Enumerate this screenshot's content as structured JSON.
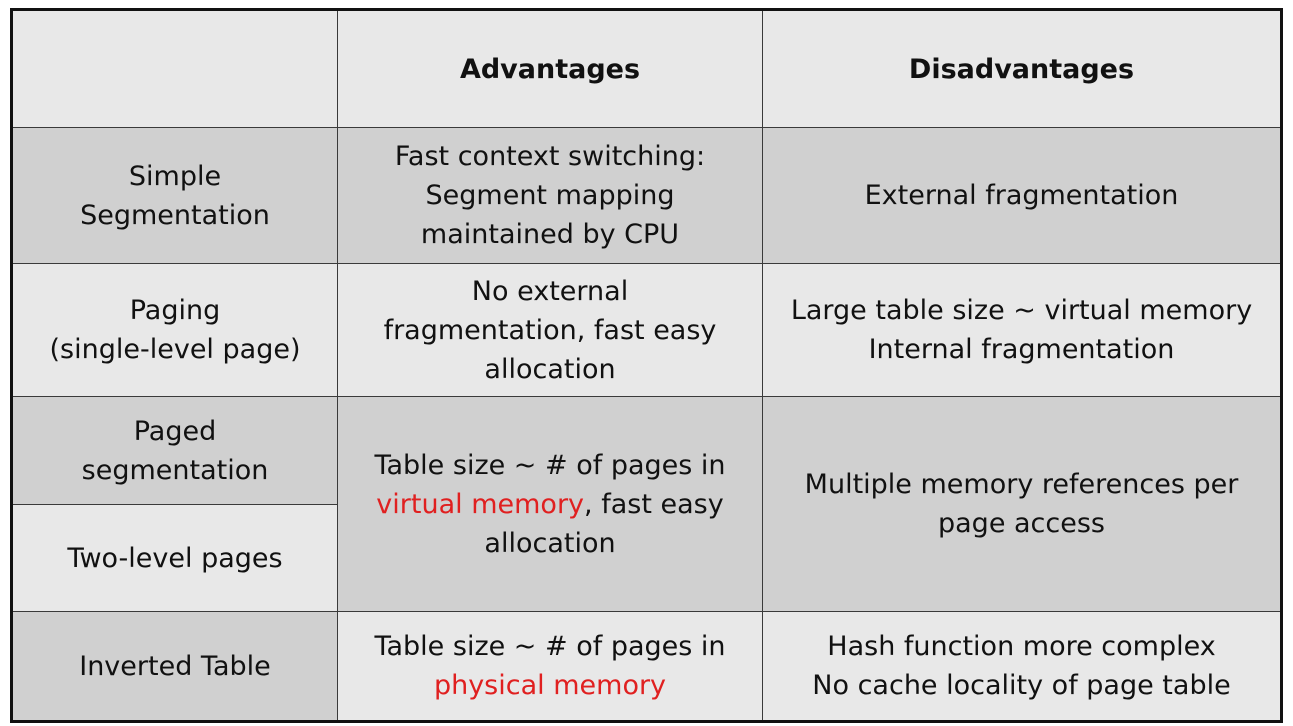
{
  "header": {
    "corner": "",
    "advantages": "Advantages",
    "disadvantages": "Disadvantages"
  },
  "rows": {
    "simple_segmentation": {
      "name_lines": [
        "Simple",
        "Segmentation"
      ],
      "advantages_lines": [
        "Fast context switching:",
        "Segment mapping",
        "maintained by CPU"
      ],
      "disadvantages_lines": [
        "External fragmentation"
      ]
    },
    "paging": {
      "name_lines": [
        "Paging",
        "(single-level page)"
      ],
      "advantages_lines": [
        "No external",
        "fragmentation, fast easy",
        "allocation"
      ],
      "disadvantages_lines": [
        "Large table size ~ virtual memory",
        "Internal fragmentation"
      ]
    },
    "paged_segmentation": {
      "name_lines": [
        "Paged",
        "segmentation"
      ]
    },
    "two_level_pages": {
      "name_lines": [
        "Two-level pages"
      ]
    },
    "shared_paged_two_level": {
      "advantages": {
        "line1": "Table size ~ # of pages in",
        "line2_highlight": "virtual memory",
        "line2_rest": ", fast easy",
        "line3": "allocation"
      },
      "disadvantages_lines": [
        "Multiple memory references per",
        "page access"
      ]
    },
    "inverted_table": {
      "name_lines": [
        "Inverted Table"
      ],
      "advantages": {
        "line1": "Table size ~ # of pages in",
        "line2_highlight": "physical memory"
      },
      "disadvantages_lines": [
        "Hash function more complex",
        "No cache locality of page table"
      ]
    }
  },
  "colors": {
    "light_row": "#e8e8e8",
    "dark_row": "#d0d0d0",
    "highlight": "#e02020",
    "border": "#111111"
  }
}
